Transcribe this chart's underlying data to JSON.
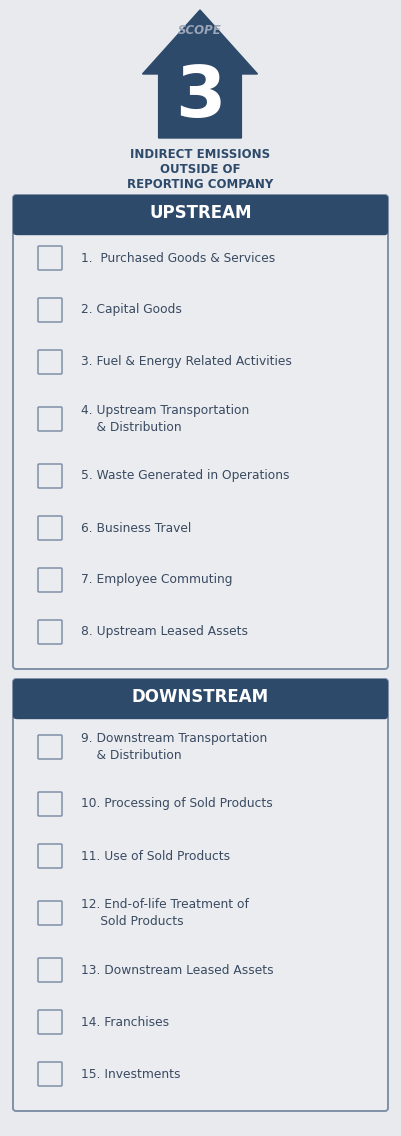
{
  "bg_color": "#e8eaed",
  "arrow_color": "#2d4a6b",
  "scope_text": "SCOPE",
  "scope_number": "3",
  "subtitle_lines": [
    "INDIRECT EMISSIONS",
    "OUTSIDE OF",
    "REPORTING COMPANY"
  ],
  "subtitle_color": "#2d4a6b",
  "header_bg_color": "#2d4a6b",
  "header_text_color": "#ffffff",
  "box_bg_color": "#eaecf0",
  "box_border_color": "#8090a8",
  "item_text_color": "#3a4a60",
  "upstream_header": "UPSTREAM",
  "downstream_header": "DOWNSTREAM",
  "upstream_items": [
    [
      "1.  Purchased Goods & Services"
    ],
    [
      "2. Capital Goods"
    ],
    [
      "3. Fuel & Energy Related Activities"
    ],
    [
      "4. Upstream Transportation",
      "    & Distribution"
    ],
    [
      "5. Waste Generated in Operations"
    ],
    [
      "6. Business Travel"
    ],
    [
      "7. Employee Commuting"
    ],
    [
      "8. Upstream Leased Assets"
    ]
  ],
  "downstream_items": [
    [
      "9. Downstream Transportation",
      "    & Distribution"
    ],
    [
      "10. Processing of Sold Products"
    ],
    [
      "11. Use of Sold Products"
    ],
    [
      "12. End-of-life Treatment of",
      "     Sold Products"
    ],
    [
      "13. Downstream Leased Assets"
    ],
    [
      "14. Franchises"
    ],
    [
      "15. Investments"
    ]
  ],
  "icon_color": "#8090a8",
  "icon_accent": "#2d4a6b",
  "upstream_item_heights": [
    52,
    52,
    52,
    62,
    52,
    52,
    52,
    52
  ],
  "downstream_item_heights": [
    62,
    52,
    52,
    62,
    52,
    52,
    52
  ]
}
